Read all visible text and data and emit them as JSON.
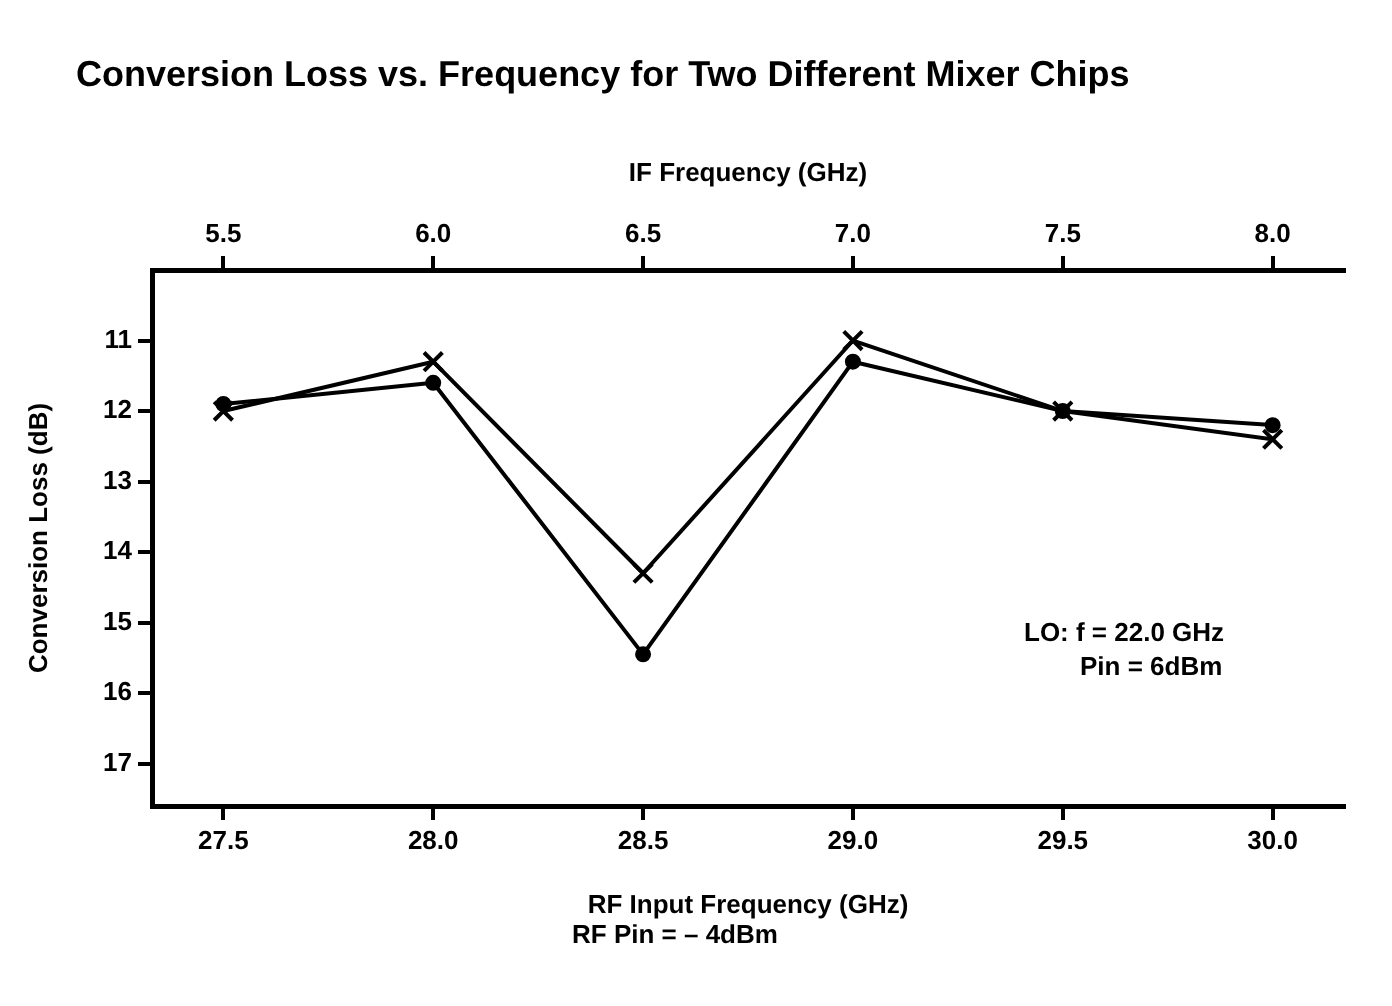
{
  "chart_data": {
    "type": "line",
    "title": "Conversion Loss vs. Frequency for Two Different Mixer Chips",
    "xlabel": "RF Input Frequency (GHz)",
    "ylabel": "Conversion Loss (dB)",
    "x2label": "IF Frequency (GHz)",
    "x": [
      27.5,
      28.0,
      28.5,
      29.0,
      29.5,
      30.0
    ],
    "series": [
      {
        "color": "#000000",
        "marker": "circle",
        "values": [
          11.9,
          11.6,
          15.45,
          11.3,
          12.0,
          12.2
        ]
      },
      {
        "color": "#000000",
        "marker": "cross",
        "values": [
          12.0,
          11.3,
          14.3,
          11.0,
          12.0,
          12.4
        ]
      }
    ],
    "xlim": [
      27.33,
      30.17
    ],
    "xticks": [
      27.5,
      {
        "value": 28,
        "label": "28.0"
      },
      28.5,
      {
        "value": 29,
        "label": "29.0"
      },
      29.5,
      {
        "value": 30,
        "label": "30.0"
      }
    ],
    "x2lim": [
      5.33,
      8.17
    ],
    "x2ticks": [
      5.5,
      {
        "value": 6,
        "label": "6.0"
      },
      6.5,
      {
        "value": 7,
        "label": "7.0"
      },
      7.5,
      {
        "value": 8,
        "label": "8.0"
      }
    ],
    "ylim": [
      17.6,
      10
    ],
    "yticks": [
      11,
      12,
      13,
      14,
      15,
      16,
      17
    ],
    "grid": false,
    "legend": false,
    "line_style": "solid",
    "annotations": [
      "LO: f = 22.0 GHz",
      "Pin = 6dBm",
      "RF Pin = – 4dBm"
    ]
  }
}
